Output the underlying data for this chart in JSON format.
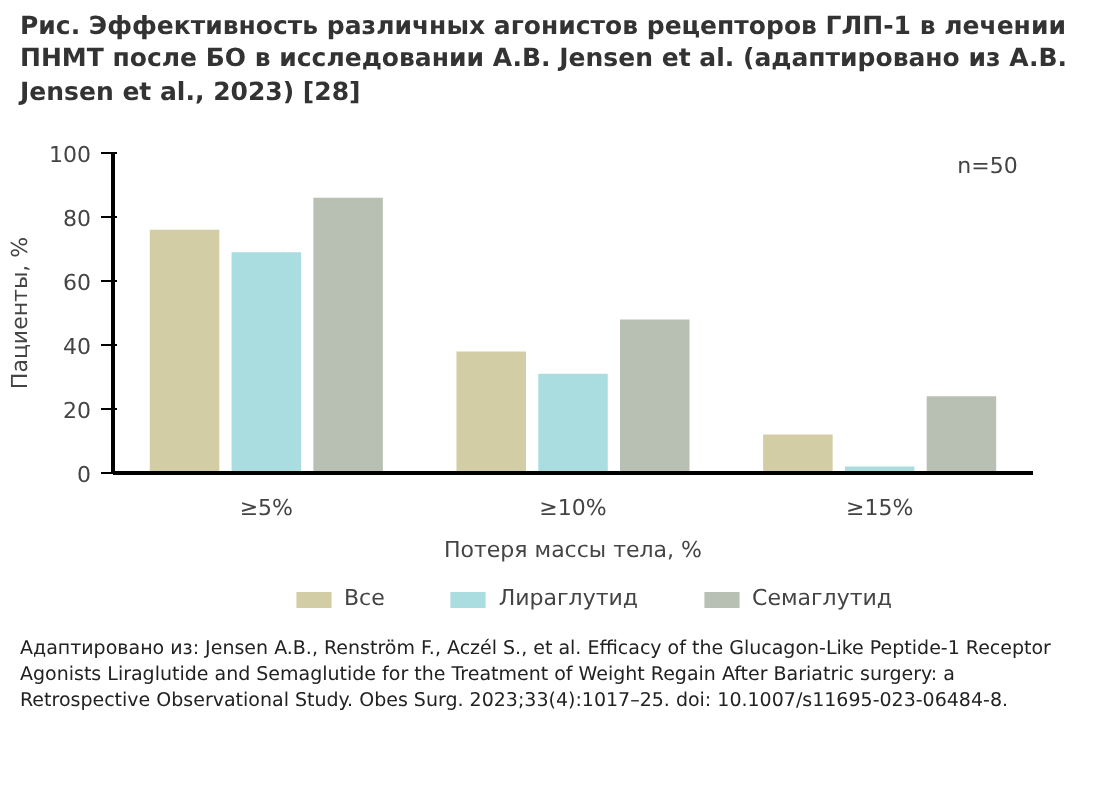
{
  "chart_data": {
    "type": "bar",
    "title": "Рис. Эффективность различных агонистов рецепторов ГЛП-1 в лечении ПНМТ после БО в исследовании A.B. Jensen et al. (адаптировано из A.B. Jensen et al., 2023) [28]",
    "xlabel": "Потеря массы тела, %",
    "ylabel": "Пациенты, %",
    "categories": [
      "≥5%",
      "≥10%",
      "≥15%"
    ],
    "series": [
      {
        "name": "Все",
        "color": "#d3cda5",
        "values": [
          76,
          38,
          12
        ]
      },
      {
        "name": "Лираглутид",
        "color": "#aadde0",
        "values": [
          69,
          31,
          2
        ]
      },
      {
        "name": "Семаглутид",
        "color": "#b8c0b4",
        "values": [
          86,
          48,
          24
        ]
      }
    ],
    "ylim": [
      0,
      100
    ],
    "yticks": [
      0,
      20,
      40,
      60,
      80,
      100
    ],
    "grid": false,
    "legend": "bottom",
    "annotations": [
      "n=50",
      "Адаптировано из: Jensen A.B., Renström F., Aczél S., et al. Efficacy of the Glucagon-Like Peptide-1 Receptor Agonists Liraglutide and Semaglutide for the Treatment of Weight Regain After Bariatric surgery: a Retrospective Observational Study. Obes Surg. 2023;33(4):1017–25. doi: 10.1007/s11695-023-06484-8."
    ]
  }
}
